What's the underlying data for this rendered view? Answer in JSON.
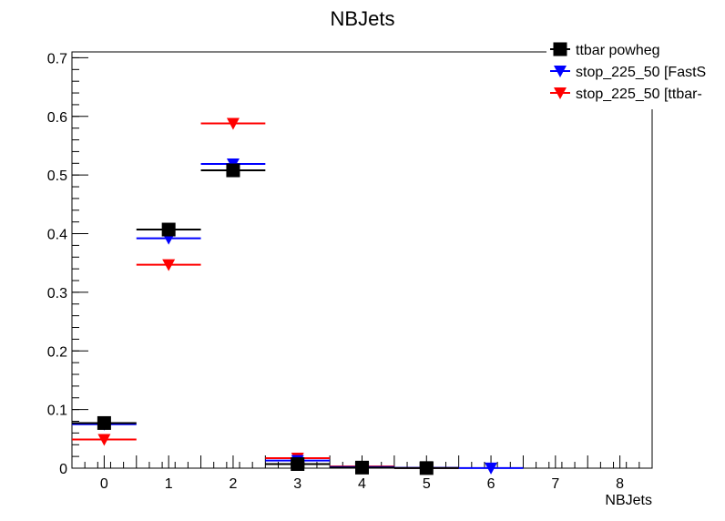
{
  "chart_data": {
    "type": "scatter",
    "title": "NBJets",
    "xlabel": "NBJets",
    "ylabel": "",
    "xlim": [
      -0.5,
      8.5
    ],
    "ylim": [
      0,
      0.71
    ],
    "xticks": [
      0,
      1,
      2,
      3,
      4,
      5,
      6,
      7,
      8
    ],
    "yticks": [
      0,
      0.1,
      0.2,
      0.3,
      0.4,
      0.5,
      0.6,
      0.7
    ],
    "yticklabels": [
      "0",
      "0.1",
      "0.2",
      "0.3",
      "0.4",
      "0.5",
      "0.6",
      "0.7"
    ],
    "grid": false,
    "legend_position": "top-right",
    "series": [
      {
        "name": "ttbar powheg",
        "marker": "square",
        "color": "#000000",
        "x": [
          0,
          1,
          2,
          3,
          4,
          5
        ],
        "y": [
          0.077,
          0.407,
          0.508,
          0.007,
          0.001,
          0.0002
        ]
      },
      {
        "name": "stop_225_50 [FastS",
        "marker": "triangle-down",
        "color": "#0000ff",
        "x": [
          0,
          1,
          2,
          3,
          4,
          5,
          6
        ],
        "y": [
          0.075,
          0.392,
          0.519,
          0.013,
          0.002,
          0.0005,
          0.0001
        ]
      },
      {
        "name": "stop_225_50 [ttbar-",
        "marker": "triangle-down",
        "color": "#ff0000",
        "x": [
          0,
          1,
          2,
          3,
          4,
          5
        ],
        "y": [
          0.049,
          0.347,
          0.588,
          0.017,
          0.003,
          0.0003
        ]
      }
    ]
  }
}
